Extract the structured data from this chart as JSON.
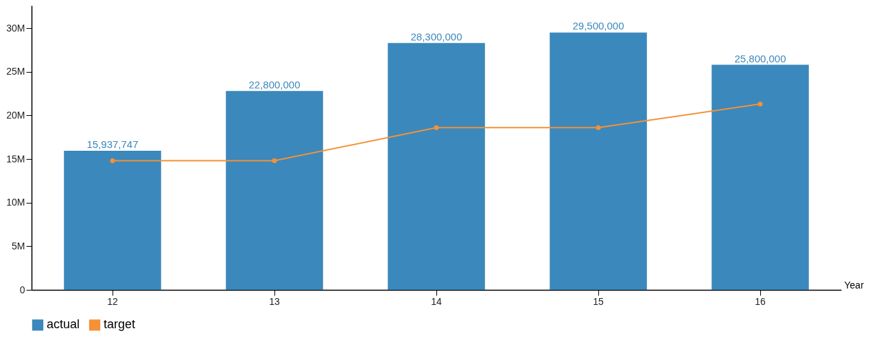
{
  "chart_data": {
    "type": "bar",
    "xlabel": "Year",
    "categories": [
      "12",
      "13",
      "14",
      "15",
      "16"
    ],
    "series": [
      {
        "name": "actual",
        "color": "#3b88bc",
        "values": [
          15937747,
          22800000,
          28300000,
          29500000,
          25800000
        ],
        "value_labels": [
          "15,937,747",
          "22,800,000",
          "28,300,000",
          "29,500,000",
          "25,800,000"
        ]
      },
      {
        "name": "target",
        "type": "line",
        "color": "#f39237",
        "values": [
          14800000,
          14800000,
          18600000,
          18600000,
          21300000
        ]
      }
    ],
    "ylim": [
      0,
      32600000
    ],
    "yticks": [
      {
        "value": 0,
        "label": "0"
      },
      {
        "value": 5000000,
        "label": "5M"
      },
      {
        "value": 10000000,
        "label": "10M"
      },
      {
        "value": 15000000,
        "label": "15M"
      },
      {
        "value": 20000000,
        "label": "20M"
      },
      {
        "value": 25000000,
        "label": "25M"
      },
      {
        "value": 30000000,
        "label": "30M"
      }
    ],
    "grid": false,
    "legend": "bottom",
    "marker": "circle",
    "line_style": "solid"
  }
}
